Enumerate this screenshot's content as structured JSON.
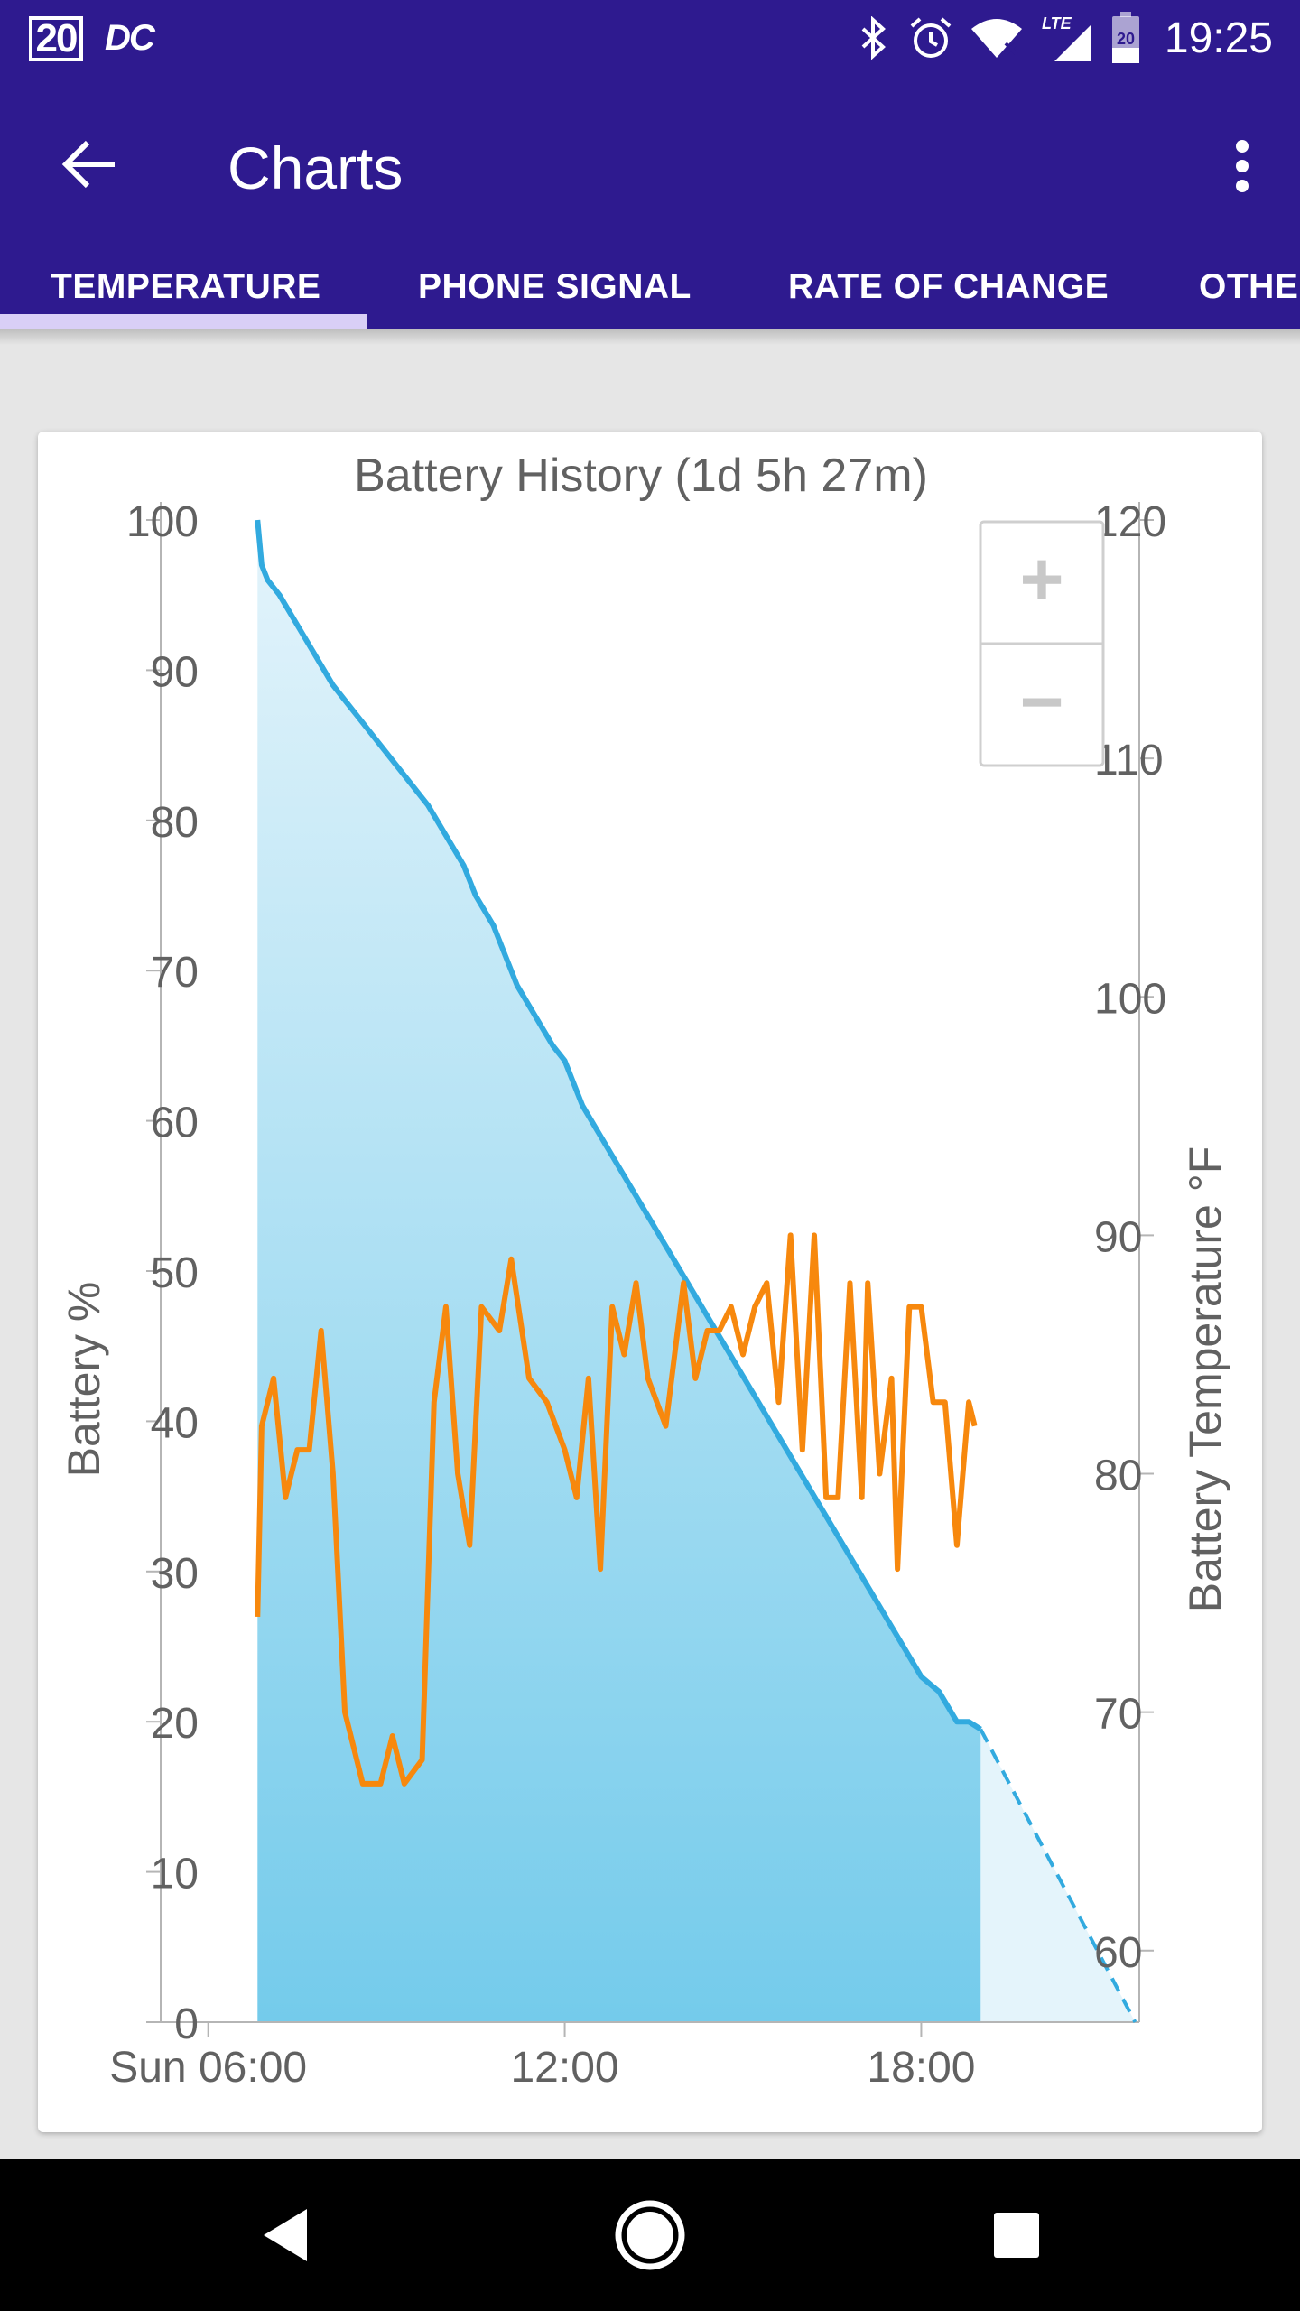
{
  "status_bar": {
    "date_badge": "20",
    "carrier_icon_text": "DC",
    "network_label": "LTE",
    "battery_level_text": "20",
    "time": "19:25",
    "icons": [
      "bluetooth-icon",
      "alarm-icon",
      "wifi-icon",
      "signal-icon",
      "battery-icon"
    ]
  },
  "app_bar": {
    "title": "Charts",
    "back_icon": "arrow-back-icon",
    "menu_icon": "more-vert-icon",
    "color": "#2e1a8f"
  },
  "tabs": [
    {
      "label": "TEMPERATURE",
      "selected": true
    },
    {
      "label": "PHONE SIGNAL",
      "selected": false
    },
    {
      "label": "RATE OF CHANGE",
      "selected": false
    },
    {
      "label": "OTHER",
      "selected": false
    }
  ],
  "zoom_controls": {
    "zoom_in": "+",
    "zoom_out": "−"
  },
  "chart_data": {
    "type": "area",
    "title": "Battery History (1d 5h 27m)",
    "ylabel": "Battery %",
    "y2label": "Battery Temperature °F",
    "ylim": [
      0,
      100
    ],
    "y2lim": [
      57,
      120
    ],
    "xlim": [
      5.2,
      21.67
    ],
    "x_ticks": [
      {
        "value": 6,
        "label": "Sun 06:00"
      },
      {
        "value": 12,
        "label": "12:00"
      },
      {
        "value": 18,
        "label": "18:00"
      }
    ],
    "y_ticks": [
      "0",
      "10",
      "20",
      "30",
      "40",
      "50",
      "60",
      "70",
      "80",
      "90",
      "100"
    ],
    "y2_ticks": [
      "60",
      "70",
      "80",
      "90",
      "100",
      "110",
      "120"
    ],
    "grid": false,
    "colors": {
      "battery_line": "#32aadf",
      "temperature_line": "#f7880d",
      "area_top": "#e4f4fb",
      "area_bottom": "#74cbeb"
    },
    "series": [
      {
        "name": "Battery %",
        "axis": "left",
        "x": [
          6.83,
          6.9,
          7.0,
          7.2,
          7.5,
          7.8,
          8.1,
          8.5,
          8.9,
          9.3,
          9.7,
          10.0,
          10.3,
          10.5,
          10.8,
          11.0,
          11.2,
          11.5,
          11.8,
          12.0,
          12.3,
          12.6,
          12.9,
          13.2,
          13.5,
          13.8,
          14.1,
          14.4,
          14.7,
          15.0,
          15.3,
          15.6,
          15.9,
          16.2,
          16.5,
          16.8,
          17.1,
          17.4,
          17.7,
          18.0,
          18.3,
          18.6,
          18.8,
          19.0
        ],
        "y": [
          100,
          97,
          96,
          95,
          93,
          91,
          89,
          87,
          85,
          83,
          81,
          79,
          77,
          75,
          73,
          71,
          69,
          67,
          65,
          64,
          61,
          59,
          57,
          55,
          53,
          51,
          49,
          47,
          45,
          43,
          41,
          39,
          37,
          35,
          33,
          31,
          29,
          27,
          25,
          23,
          22,
          20,
          20,
          19.5
        ]
      },
      {
        "name": "Battery % (projected)",
        "axis": "left",
        "dashed": true,
        "x": [
          19.0,
          21.6
        ],
        "y": [
          19.5,
          0
        ]
      },
      {
        "name": "Battery Temperature °F",
        "axis": "right",
        "x": [
          6.83,
          6.9,
          7.1,
          7.3,
          7.5,
          7.7,
          7.9,
          8.1,
          8.3,
          8.6,
          8.9,
          9.1,
          9.3,
          9.6,
          9.8,
          10.0,
          10.2,
          10.4,
          10.6,
          10.9,
          11.1,
          11.4,
          11.7,
          12.0,
          12.2,
          12.4,
          12.6,
          12.8,
          13.0,
          13.2,
          13.4,
          13.7,
          14.0,
          14.2,
          14.4,
          14.6,
          14.8,
          15.0,
          15.2,
          15.4,
          15.6,
          15.8,
          16.0,
          16.2,
          16.4,
          16.6,
          16.8,
          17.0,
          17.1,
          17.3,
          17.5,
          17.6,
          17.8,
          18.0,
          18.2,
          18.4,
          18.6,
          18.8,
          18.9
        ],
        "y": [
          74,
          82,
          84,
          79,
          81,
          81,
          86,
          80,
          70,
          67,
          67,
          69,
          67,
          68,
          83,
          87,
          80,
          77,
          87,
          86,
          89,
          84,
          83,
          81,
          79,
          84,
          76,
          87,
          85,
          88,
          84,
          82,
          88,
          84,
          86,
          86,
          87,
          85,
          87,
          88,
          83,
          90,
          81,
          90,
          79,
          79,
          88,
          79,
          88,
          80,
          84,
          76,
          87,
          87,
          83,
          83,
          77,
          83,
          82
        ]
      }
    ]
  }
}
